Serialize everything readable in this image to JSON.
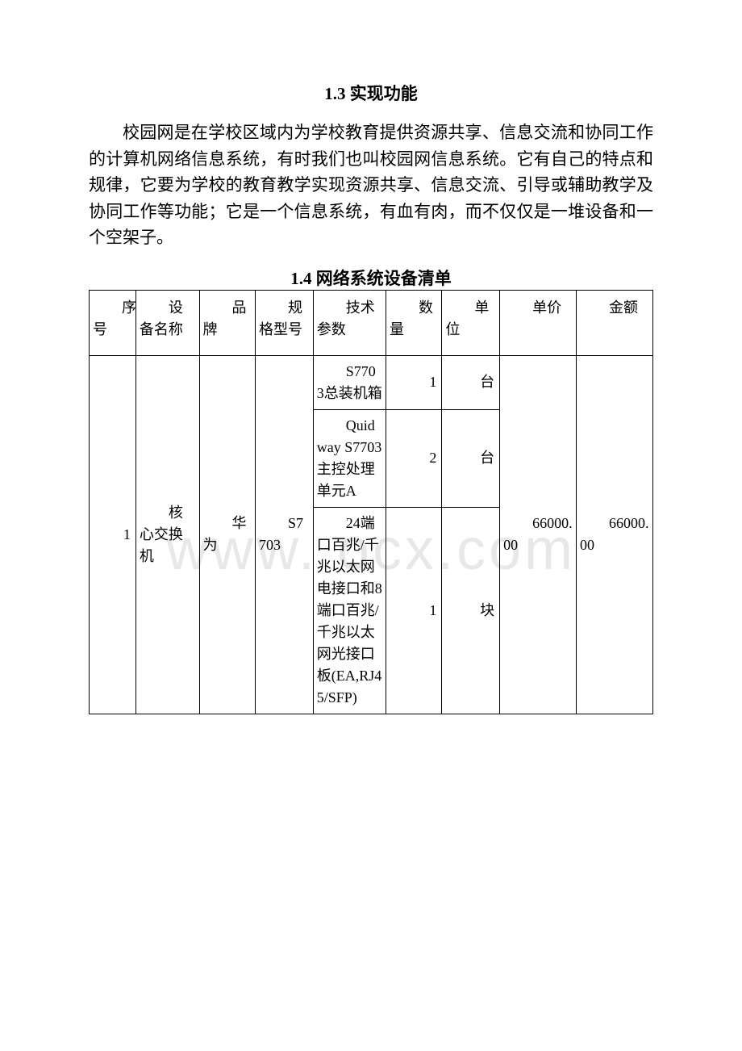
{
  "section1": {
    "heading": "1.3 实现功能",
    "paragraph": "校园网是在学校区域内为学校教育提供资源共享、信息交流和协同工作的计算机网络信息系统，有时我们也叫校园网信息系统。它有自己的特点和规律，它要为学校的教育教学实现资源共享、信息交流、引导或辅助教学及协同工作等功能；它是一个信息系统，有血有肉，而不仅仅是一堆设备和一个空架子。"
  },
  "section2": {
    "heading": "1.4 网络系统设备清单",
    "columns": {
      "c0": "序号",
      "c1": "设备名称",
      "c2": "品牌",
      "c3": "规格型号",
      "c4": "技术参数",
      "c5": "数量",
      "c6": "单位",
      "c7": "单价",
      "c8": "金额"
    },
    "row": {
      "no": "1",
      "name": "核心交换机",
      "brand": "华为",
      "model": "S7703",
      "price": "66000.00",
      "amount": "66000.00",
      "subs": {
        "s0": {
          "param": "S7703总装机箱",
          "qty": "1",
          "unit": "台"
        },
        "s1": {
          "param": "Quidway S7703主控处理单元A",
          "qty": "2",
          "unit": "台"
        },
        "s2": {
          "param": "24端口百兆/千兆以太网电接口和8端口百兆/千兆以太网光接口板(EA,RJ45/SFP)",
          "qty": "1",
          "unit": "块"
        }
      }
    }
  },
  "watermark": "www.  ocx.com",
  "style": {
    "col_widths": [
      "50px",
      "68px",
      "60px",
      "62px",
      "78px",
      "60px",
      "62px",
      "82px",
      "82px"
    ]
  }
}
